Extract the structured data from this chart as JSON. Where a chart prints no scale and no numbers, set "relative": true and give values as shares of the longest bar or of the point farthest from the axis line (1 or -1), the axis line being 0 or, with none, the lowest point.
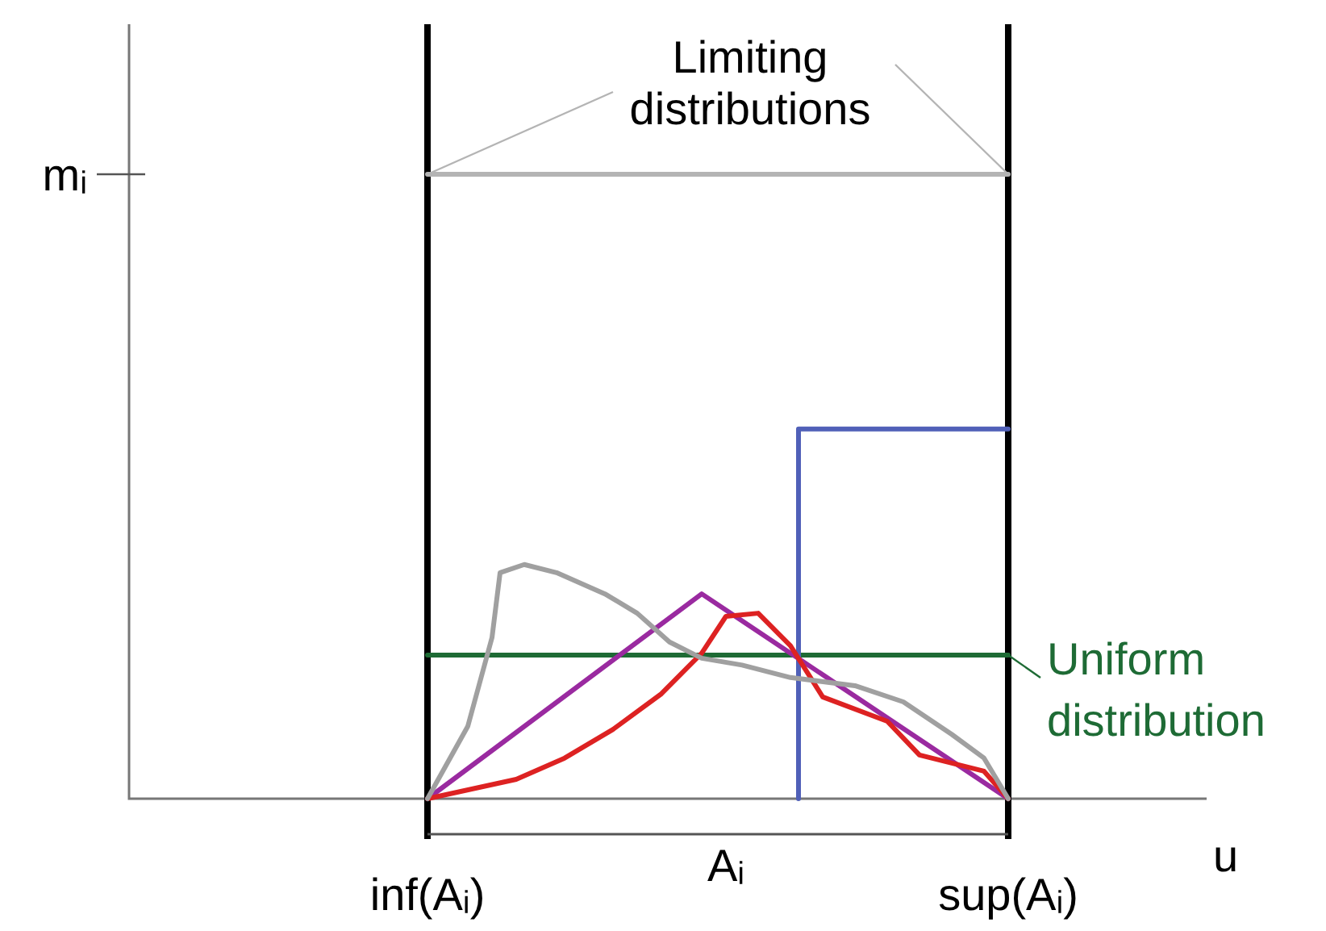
{
  "chart_data": {
    "type": "line",
    "xlabel": "u",
    "relative": true,
    "legend": "right",
    "marker": "none",
    "line_style": "solid",
    "categories": [
      "inf(Aᵢ)",
      null,
      null,
      null,
      null,
      null,
      null,
      null,
      null,
      null,
      null,
      null,
      null,
      null,
      null,
      null,
      null,
      null,
      null,
      null,
      null,
      null,
      null,
      null,
      null,
      null,
      null,
      null,
      null,
      null,
      null,
      null,
      null,
      null,
      null,
      null,
      null,
      "Aᵢ",
      null,
      null,
      null,
      null,
      null,
      null,
      null,
      null,
      null,
      null,
      null,
      null,
      null,
      null,
      null,
      null,
      null,
      null,
      null,
      null,
      null,
      null,
      null,
      null,
      null,
      null,
      null,
      null,
      null,
      null,
      null,
      null,
      null,
      null,
      "sup(Aᵢ)"
    ],
    "ref_lines": [
      {
        "axis": "x",
        "value": "inf(Aᵢ)",
        "color": "#000000"
      },
      {
        "axis": "x",
        "value": "sup(Aᵢ)",
        "color": "#000000"
      }
    ],
    "annotations": [
      "mᵢ",
      "Limiting distributions"
    ],
    "series": [
      {
        "color": "#b4b4b4",
        "values": [
          1,
          null,
          null,
          null,
          null,
          null,
          null,
          null,
          null,
          null,
          null,
          null,
          null,
          null,
          null,
          null,
          null,
          null,
          null,
          null,
          null,
          null,
          null,
          null,
          null,
          null,
          null,
          null,
          null,
          null,
          null,
          null,
          null,
          null,
          null,
          null,
          null,
          null,
          null,
          null,
          null,
          null,
          null,
          null,
          null,
          null,
          null,
          null,
          null,
          null,
          null,
          null,
          null,
          null,
          null,
          null,
          null,
          null,
          null,
          null,
          null,
          null,
          null,
          null,
          null,
          null,
          null,
          null,
          null,
          null,
          null,
          null,
          1
        ]
      },
      {
        "color": "#a0a0a0",
        "values": [
          0,
          null,
          null,
          null,
          null,
          0.116,
          null,
          null,
          0.258,
          0.362,
          null,
          null,
          0.375,
          null,
          null,
          null,
          0.362,
          null,
          null,
          null,
          null,
          null,
          0.328,
          null,
          null,
          null,
          0.297,
          null,
          null,
          null,
          0.251,
          null,
          null,
          null,
          0.225,
          null,
          null,
          null,
          null,
          0.214,
          null,
          null,
          null,
          null,
          null,
          0.194,
          null,
          null,
          null,
          null,
          null,
          null,
          null,
          0.181,
          null,
          null,
          null,
          null,
          null,
          0.155,
          null,
          null,
          null,
          null,
          null,
          0.103,
          null,
          null,
          null,
          0.065,
          null,
          null,
          0
        ]
      },
      {
        "color": "#dd2222",
        "values": [
          0,
          null,
          null,
          null,
          null,
          null,
          null,
          null,
          null,
          null,
          null,
          0.031,
          null,
          null,
          null,
          null,
          null,
          0.065,
          null,
          null,
          null,
          null,
          null,
          0.111,
          null,
          null,
          null,
          null,
          null,
          0.168,
          null,
          null,
          null,
          null,
          0.233,
          null,
          null,
          0.292,
          null,
          null,
          null,
          0.297,
          null,
          null,
          null,
          0.245,
          null,
          null,
          null,
          0.163,
          null,
          null,
          null,
          null,
          null,
          null,
          null,
          0.124,
          null,
          null,
          null,
          0.07,
          null,
          null,
          null,
          null,
          null,
          null,
          null,
          0.044,
          null,
          null,
          0
        ]
      },
      {
        "color": "#9a2aa0",
        "values": [
          0,
          null,
          null,
          null,
          null,
          null,
          null,
          null,
          null,
          null,
          null,
          null,
          null,
          null,
          null,
          null,
          null,
          null,
          null,
          null,
          null,
          null,
          null,
          null,
          null,
          null,
          null,
          null,
          null,
          null,
          null,
          null,
          null,
          null,
          0.328,
          null,
          null,
          null,
          null,
          null,
          null,
          null,
          null,
          null,
          null,
          null,
          null,
          null,
          null,
          null,
          null,
          null,
          null,
          null,
          null,
          null,
          null,
          null,
          null,
          null,
          null,
          null,
          null,
          null,
          null,
          null,
          null,
          null,
          null,
          null,
          null,
          null,
          0
        ]
      },
      {
        "type": "step",
        "color": "#5060b8",
        "values": [
          null,
          null,
          null,
          null,
          null,
          null,
          null,
          null,
          null,
          null,
          null,
          null,
          null,
          null,
          null,
          null,
          null,
          null,
          null,
          null,
          null,
          null,
          null,
          null,
          null,
          null,
          null,
          null,
          null,
          null,
          null,
          null,
          null,
          null,
          null,
          null,
          null,
          null,
          null,
          null,
          null,
          null,
          null,
          null,
          null,
          null,
          0,
          null,
          null,
          null,
          null,
          null,
          null,
          null,
          null,
          null,
          null,
          null,
          null,
          null,
          null,
          null,
          null,
          null,
          null,
          null,
          null,
          null,
          null,
          null,
          null,
          null,
          0.592
        ]
      },
      {
        "name": "Uniform distribution",
        "color": "#1e6b35",
        "values": [
          0.23,
          null,
          null,
          null,
          null,
          null,
          null,
          null,
          null,
          null,
          null,
          null,
          null,
          null,
          null,
          null,
          null,
          null,
          null,
          null,
          null,
          null,
          null,
          null,
          null,
          null,
          null,
          null,
          null,
          null,
          null,
          null,
          null,
          null,
          null,
          null,
          null,
          null,
          null,
          null,
          null,
          null,
          null,
          null,
          null,
          null,
          null,
          null,
          null,
          null,
          null,
          null,
          null,
          null,
          null,
          null,
          null,
          null,
          null,
          null,
          null,
          null,
          null,
          null,
          null,
          null,
          null,
          null,
          null,
          null,
          null,
          null,
          0.23
        ]
      }
    ]
  }
}
